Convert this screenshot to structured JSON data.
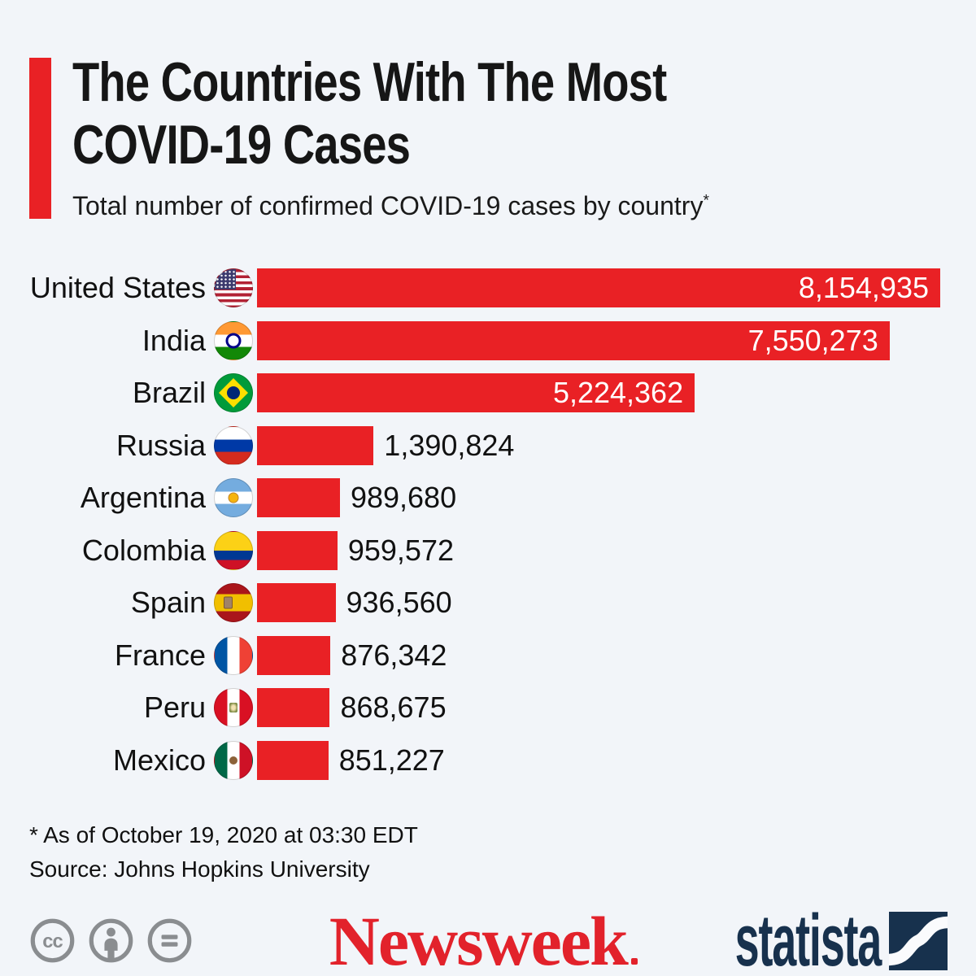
{
  "colors": {
    "background": "#f2f5f9",
    "bar_red": "#e92125",
    "accent_red": "#e92125",
    "newsweek_red": "#e2222b",
    "statista_navy": "#17314d",
    "license_gray": "#8a8d90"
  },
  "header": {
    "title": "The Countries With The Most\nCOVID-19 Cases",
    "subtitle": "Total number of confirmed COVID-19 cases by country",
    "footnote_marker": "*"
  },
  "chart_data": {
    "type": "bar",
    "orientation": "horizontal",
    "title": "The Countries With The Most COVID-19 Cases",
    "subtitle": "Total number of confirmed COVID-19 cases by country*",
    "categories": [
      "United States",
      "India",
      "Brazil",
      "Russia",
      "Argentina",
      "Colombia",
      "Spain",
      "France",
      "Peru",
      "Mexico"
    ],
    "values": [
      8154935,
      7550273,
      5224362,
      1390824,
      989680,
      959572,
      936560,
      876342,
      868675,
      851227
    ],
    "value_labels": [
      "8,154,935",
      "7,550,273",
      "5,224,362",
      "1,390,824",
      "989,680",
      "959,572",
      "936,560",
      "876,342",
      "868,675",
      "851,227"
    ],
    "xlim": [
      0,
      8154935
    ],
    "grid": false,
    "bar_color": "#e92125",
    "footnote": "* As of October 19, 2020 at 03:30 EDT",
    "source": "Source: Johns Hopkins University"
  },
  "rows": [
    {
      "country": "United States",
      "flag_icon": "united-states-flag-icon",
      "value": 8154935,
      "value_label": "8,154,935",
      "width_pct": 100,
      "value_label_position": "inside"
    },
    {
      "country": "India",
      "flag_icon": "india-flag-icon",
      "value": 7550273,
      "value_label": "7,550,273",
      "width_pct": 92.59,
      "value_label_position": "inside"
    },
    {
      "country": "Brazil",
      "flag_icon": "brazil-flag-icon",
      "value": 5224362,
      "value_label": "5,224,362",
      "width_pct": 64.06,
      "value_label_position": "inside"
    },
    {
      "country": "Russia",
      "flag_icon": "russia-flag-icon",
      "value": 1390824,
      "value_label": "1,390,824",
      "width_pct": 17.06,
      "value_label_position": "outside"
    },
    {
      "country": "Argentina",
      "flag_icon": "argentina-flag-icon",
      "value": 989680,
      "value_label": "989,680",
      "width_pct": 12.14,
      "value_label_position": "outside"
    },
    {
      "country": "Colombia",
      "flag_icon": "colombia-flag-icon",
      "value": 959572,
      "value_label": "959,572",
      "width_pct": 11.77,
      "value_label_position": "outside"
    },
    {
      "country": "Spain",
      "flag_icon": "spain-flag-icon",
      "value": 936560,
      "value_label": "936,560",
      "width_pct": 11.49,
      "value_label_position": "outside"
    },
    {
      "country": "France",
      "flag_icon": "france-flag-icon",
      "value": 876342,
      "value_label": "876,342",
      "width_pct": 10.75,
      "value_label_position": "outside"
    },
    {
      "country": "Peru",
      "flag_icon": "peru-flag-icon",
      "value": 868675,
      "value_label": "868,675",
      "width_pct": 10.65,
      "value_label_position": "outside"
    },
    {
      "country": "Mexico",
      "flag_icon": "mexico-flag-icon",
      "value": 851227,
      "value_label": "851,227",
      "width_pct": 10.44,
      "value_label_position": "outside"
    }
  ],
  "footnote": {
    "line1": "* As of October 19, 2020 at 03:30 EDT",
    "line2": "Source: Johns Hopkins University"
  },
  "footer": {
    "license_icons": [
      "cc-icon",
      "attribution-icon",
      "equal-sign-icon"
    ],
    "newsweek_logo": "Newsweek",
    "statista_logo": "statista"
  }
}
